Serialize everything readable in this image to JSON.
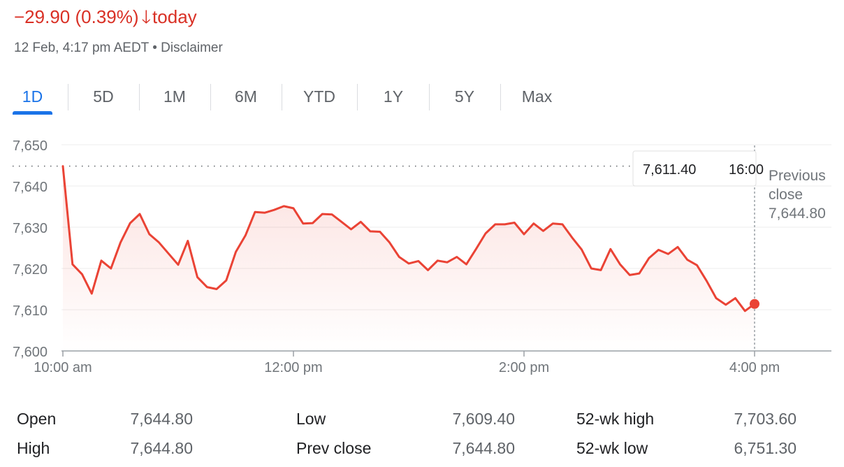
{
  "header": {
    "change": "−29.90 (0.39%)",
    "arrow": "🡓",
    "period": "today",
    "timestamp": "12 Feb, 4:17 pm AEDT",
    "separator": "•",
    "disclaimer": "Disclaimer"
  },
  "tabs": [
    {
      "label": "1D",
      "active": true
    },
    {
      "label": "5D"
    },
    {
      "label": "1M"
    },
    {
      "label": "6M"
    },
    {
      "label": "YTD"
    },
    {
      "label": "1Y"
    },
    {
      "label": "5Y"
    },
    {
      "label": "Max"
    }
  ],
  "chart_data": {
    "type": "line",
    "title": "",
    "xlabel": "",
    "ylabel": "",
    "ylim": [
      7600,
      7650
    ],
    "yticks": [
      7600,
      7610,
      7620,
      7630,
      7640,
      7650
    ],
    "ytick_labels": [
      "7,600",
      "7,610",
      "7,620",
      "7,630",
      "7,640",
      "7,650"
    ],
    "xlim": [
      "10:00",
      "16:40"
    ],
    "xticks": [
      "10:00",
      "12:00",
      "14:00",
      "16:00"
    ],
    "xtick_labels": [
      "10:00 am",
      "12:00 pm",
      "2:00 pm",
      "4:00 pm"
    ],
    "grid": true,
    "line_color": "#ea4335",
    "previous_close": {
      "value": 7644.8,
      "label_line1": "Previous",
      "label_line2": "close",
      "label_value": "7,644.80"
    },
    "tooltip": {
      "value": "7,611.40",
      "time": "16:00"
    },
    "series": [
      {
        "x": [
          "10:00",
          "10:05",
          "10:10",
          "10:15",
          "10:20",
          "10:25",
          "10:30",
          "10:35",
          "10:40",
          "10:45",
          "10:50",
          "10:55",
          "11:00",
          "11:05",
          "11:10",
          "11:15",
          "11:20",
          "11:25",
          "11:30",
          "11:35",
          "11:40",
          "11:45",
          "11:50",
          "11:55",
          "12:00",
          "12:05",
          "12:10",
          "12:15",
          "12:20",
          "12:25",
          "12:30",
          "12:35",
          "12:40",
          "12:45",
          "12:50",
          "12:55",
          "13:00",
          "13:05",
          "13:10",
          "13:15",
          "13:20",
          "13:25",
          "13:30",
          "13:35",
          "13:40",
          "13:45",
          "13:50",
          "13:55",
          "14:00",
          "14:05",
          "14:10",
          "14:15",
          "14:20",
          "14:25",
          "14:30",
          "14:35",
          "14:40",
          "14:45",
          "14:50",
          "14:55",
          "15:00",
          "15:05",
          "15:10",
          "15:15",
          "15:20",
          "15:25",
          "15:30",
          "15:35",
          "15:40",
          "15:45",
          "15:50",
          "15:55",
          "16:00"
        ],
        "values": [
          7644.8,
          7621.0,
          7618.6,
          7613.9,
          7621.9,
          7620.0,
          7626.3,
          7631.0,
          7633.2,
          7628.3,
          7626.3,
          7623.6,
          7620.9,
          7626.7,
          7617.9,
          7615.5,
          7615.0,
          7617.1,
          7624.0,
          7628.0,
          7633.7,
          7633.5,
          7634.2,
          7635.1,
          7634.6,
          7630.9,
          7631.0,
          7633.2,
          7633.1,
          7631.3,
          7629.5,
          7631.3,
          7629.0,
          7628.9,
          7626.3,
          7622.8,
          7621.2,
          7621.8,
          7619.6,
          7621.9,
          7621.5,
          7622.8,
          7621.0,
          7624.7,
          7628.5,
          7630.7,
          7630.7,
          7631.1,
          7628.3,
          7630.9,
          7629.1,
          7630.9,
          7630.7,
          7627.5,
          7624.6,
          7620.0,
          7619.6,
          7624.7,
          7621.0,
          7618.4,
          7618.8,
          7622.5,
          7624.5,
          7623.5,
          7625.2,
          7622.1,
          7620.8,
          7617.0,
          7612.8,
          7611.2,
          7612.8,
          7609.7,
          7611.4
        ]
      }
    ]
  },
  "stats": [
    {
      "label": "Open",
      "value": "7,644.80"
    },
    {
      "label": "High",
      "value": "7,644.80"
    },
    {
      "label": "Low",
      "value": "7,609.40"
    },
    {
      "label": "Prev close",
      "value": "7,644.80"
    },
    {
      "label": "52-wk high",
      "value": "7,703.60"
    },
    {
      "label": "52-wk low",
      "value": "6,751.30"
    }
  ]
}
